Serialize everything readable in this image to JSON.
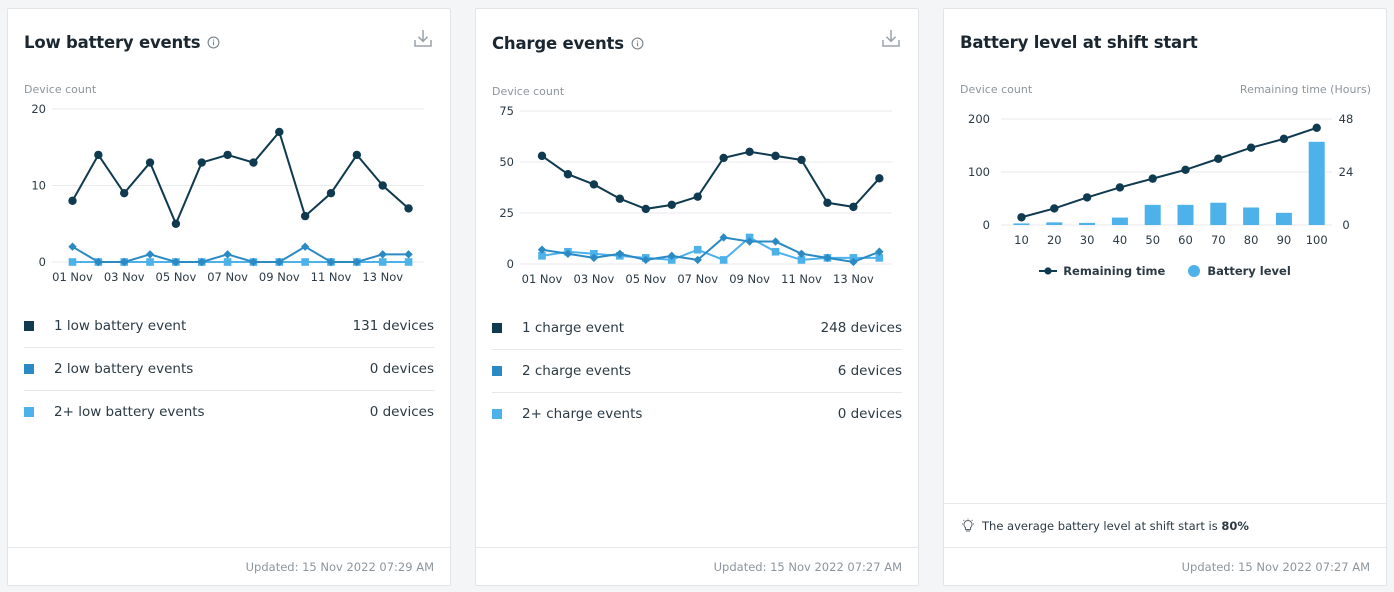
{
  "colors": {
    "dark": "#0f3a4f",
    "mid": "#2b8ac4",
    "light": "#4db1ea",
    "grid": "#e8eaec"
  },
  "cards": [
    {
      "title": "Low battery events",
      "info_icon": "info-icon",
      "download_icon": "download-icon",
      "footer": "Updated: 15 Nov 2022 07:29 AM",
      "legend": [
        {
          "label": "1 low battery event",
          "count": "131 devices"
        },
        {
          "label": "2 low battery events",
          "count": "0 devices"
        },
        {
          "label": "2+ low battery events",
          "count": "0 devices"
        }
      ]
    },
    {
      "title": "Charge events",
      "info_icon": "info-icon",
      "download_icon": "download-icon",
      "footer": "Updated: 15 Nov 2022 07:27 AM",
      "legend": [
        {
          "label": "1 charge event",
          "count": "248 devices"
        },
        {
          "label": "2 charge events",
          "count": "6 devices"
        },
        {
          "label": "2+ charge events",
          "count": "0 devices"
        }
      ]
    },
    {
      "title": "Battery level at shift start",
      "tip_icon": "lightbulb-icon",
      "tip_text": "The average battery level at shift start is ",
      "tip_value": "80%",
      "footer": "Updated: 15 Nov 2022 07:27 AM",
      "legend": [
        {
          "label": "Remaining time"
        },
        {
          "label": "Battery level"
        }
      ]
    }
  ],
  "chart_data": [
    {
      "type": "line",
      "ylabel": "Device count",
      "ylim": [
        0,
        20
      ],
      "yticks": [
        "0",
        "10",
        "20"
      ],
      "x": [
        "01 Nov",
        "02 Nov",
        "03 Nov",
        "04 Nov",
        "05 Nov",
        "06 Nov",
        "07 Nov",
        "08 Nov",
        "09 Nov",
        "10 Nov",
        "11 Nov",
        "12 Nov",
        "13 Nov",
        "14 Nov"
      ],
      "x_tick_labels": [
        "01 Nov",
        "03 Nov",
        "05 Nov",
        "07 Nov",
        "09 Nov",
        "11 Nov",
        "13 Nov"
      ],
      "series": [
        {
          "values": [
            8,
            14,
            9,
            13,
            5,
            13,
            14,
            13,
            17,
            6,
            9,
            14,
            10,
            7
          ],
          "marker": "circle"
        },
        {
          "values": [
            2,
            0,
            0,
            1,
            0,
            0,
            1,
            0,
            0,
            2,
            0,
            0,
            1,
            1
          ],
          "marker": "diamond"
        },
        {
          "values": [
            0,
            0,
            0,
            0,
            0,
            0,
            0,
            0,
            0,
            0,
            0,
            0,
            0,
            0
          ],
          "marker": "square"
        }
      ]
    },
    {
      "type": "line",
      "ylabel": "Device count",
      "ylim": [
        0,
        75
      ],
      "yticks": [
        "0",
        "25",
        "50",
        "75"
      ],
      "x": [
        "01 Nov",
        "02 Nov",
        "03 Nov",
        "04 Nov",
        "05 Nov",
        "06 Nov",
        "07 Nov",
        "08 Nov",
        "09 Nov",
        "10 Nov",
        "11 Nov",
        "12 Nov",
        "13 Nov",
        "14 Nov"
      ],
      "x_tick_labels": [
        "01 Nov",
        "03 Nov",
        "05 Nov",
        "07 Nov",
        "09 Nov",
        "11 Nov",
        "13 Nov"
      ],
      "series": [
        {
          "values": [
            53,
            44,
            39,
            32,
            27,
            29,
            33,
            52,
            55,
            53,
            51,
            30,
            28,
            42
          ],
          "marker": "circle"
        },
        {
          "values": [
            7,
            5,
            3,
            5,
            2,
            4,
            2,
            13,
            11,
            11,
            5,
            3,
            1,
            6
          ],
          "marker": "diamond"
        },
        {
          "values": [
            4,
            6,
            5,
            4,
            3,
            2,
            7,
            2,
            13,
            6,
            2,
            3,
            3,
            3
          ],
          "marker": "square"
        }
      ]
    },
    {
      "type": "bar+line",
      "ylabel": "Device count",
      "y2label": "Remaining time (Hours)",
      "ylim": [
        0,
        200
      ],
      "yticks": [
        "0",
        "100",
        "200"
      ],
      "y2lim": [
        0,
        48
      ],
      "y2ticks": [
        "0",
        "24",
        "48"
      ],
      "categories": [
        "10",
        "20",
        "30",
        "40",
        "50",
        "60",
        "70",
        "80",
        "90",
        "100"
      ],
      "series": [
        {
          "name": "Battery level",
          "type": "bar",
          "axis": "left",
          "values": [
            3,
            5,
            4,
            14,
            38,
            38,
            42,
            33,
            23,
            157
          ]
        },
        {
          "name": "Remaining time",
          "type": "line",
          "axis": "right",
          "values": [
            3.5,
            7.5,
            12.5,
            17,
            21,
            25,
            30,
            35,
            39,
            44
          ]
        }
      ]
    }
  ]
}
